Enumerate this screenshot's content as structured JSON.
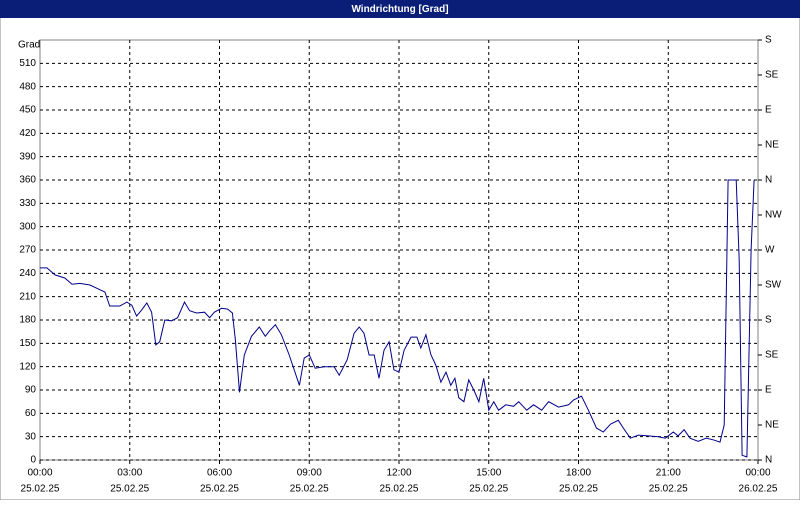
{
  "chart_data": {
    "type": "line",
    "title": "Windrichtung [Grad]",
    "ylabel": "Grad",
    "color": "#00008b",
    "x": [
      0,
      0.23,
      0.5,
      0.83,
      1.07,
      1.33,
      1.67,
      2,
      2.17,
      2.33,
      2.67,
      2.9,
      3.07,
      3.23,
      3.4,
      3.57,
      3.73,
      3.87,
      4,
      4.17,
      4.4,
      4.6,
      4.83,
      5,
      5.23,
      5.5,
      5.67,
      5.83,
      6.07,
      6.27,
      6.43,
      6.53,
      6.67,
      6.83,
      7.07,
      7.33,
      7.53,
      7.67,
      7.87,
      8.07,
      8.33,
      8.67,
      8.83,
      9,
      9.2,
      9.5,
      9.83,
      10,
      10.27,
      10.5,
      10.67,
      10.83,
      11,
      11.17,
      11.33,
      11.5,
      11.67,
      11.83,
      12,
      12.17,
      12.4,
      12.6,
      12.73,
      12.9,
      13.07,
      13.23,
      13.4,
      13.57,
      13.73,
      13.87,
      14,
      14.17,
      14.33,
      14.5,
      14.67,
      14.83,
      15,
      15.17,
      15.33,
      15.57,
      15.83,
      16,
      16.27,
      16.5,
      16.77,
      17,
      17.33,
      17.67,
      17.83,
      18.1,
      18.33,
      18.6,
      18.83,
      19.07,
      19.33,
      19.5,
      19.73,
      20,
      20.33,
      20.67,
      20.9,
      21.17,
      21.33,
      21.53,
      21.73,
      22,
      22.27,
      22.5,
      22.73,
      22.87,
      23,
      23.27,
      23.37,
      23.47,
      23.63,
      23.77,
      23.87
    ],
    "values": [
      247,
      247,
      238,
      234,
      226,
      227,
      225,
      219,
      216,
      198,
      198,
      203,
      199,
      185,
      193,
      202,
      190,
      148,
      152,
      180,
      179,
      183,
      203,
      192,
      189,
      190,
      183,
      190,
      195,
      194,
      189,
      154,
      87,
      135,
      159,
      171,
      159,
      166,
      174,
      161,
      135,
      96,
      131,
      135,
      118,
      120,
      120,
      109,
      129,
      163,
      171,
      163,
      135,
      135,
      105,
      141,
      152,
      116,
      113,
      141,
      158,
      158,
      144,
      161,
      135,
      122,
      100,
      113,
      96,
      105,
      80,
      75,
      103,
      90,
      75,
      105,
      64,
      75,
      64,
      71,
      69,
      75,
      64,
      71,
      64,
      75,
      68,
      71,
      77,
      82,
      64,
      41,
      36,
      46,
      51,
      41,
      28,
      32,
      31,
      30,
      28,
      36,
      31,
      39,
      28,
      24,
      28,
      26,
      23,
      45,
      360,
      360,
      257,
      6,
      4,
      270,
      360
    ],
    "xlim": [
      0,
      24
    ],
    "xticks": [
      {
        "value": 0,
        "label": "00:00"
      },
      {
        "value": 3,
        "label": "03:00"
      },
      {
        "value": 6,
        "label": "06:00"
      },
      {
        "value": 9,
        "label": "09:00"
      },
      {
        "value": 12,
        "label": "12:00"
      },
      {
        "value": 15,
        "label": "15:00"
      },
      {
        "value": 18,
        "label": "18:00"
      },
      {
        "value": 21,
        "label": "21:00"
      },
      {
        "value": 24,
        "label": "00:00"
      }
    ],
    "xtick_dates": [
      "25.02.25",
      "25.02.25",
      "25.02.25",
      "25.02.25",
      "25.02.25",
      "25.02.25",
      "25.02.25",
      "25.02.25",
      "26.02.25"
    ],
    "ylim": [
      0,
      540
    ],
    "yticks": [
      0,
      30,
      60,
      90,
      120,
      150,
      180,
      210,
      240,
      270,
      300,
      330,
      360,
      390,
      420,
      450,
      480,
      510
    ],
    "y2lim": [
      0,
      540
    ],
    "y2ticks": [
      {
        "value": 0,
        "label": "N"
      },
      {
        "value": 45,
        "label": "NE"
      },
      {
        "value": 90,
        "label": "E"
      },
      {
        "value": 135,
        "label": "SE"
      },
      {
        "value": 180,
        "label": "S"
      },
      {
        "value": 225,
        "label": "SW"
      },
      {
        "value": 270,
        "label": "W"
      },
      {
        "value": 315,
        "label": "NW"
      },
      {
        "value": 360,
        "label": "N"
      },
      {
        "value": 405,
        "label": "NE"
      },
      {
        "value": 450,
        "label": "E"
      },
      {
        "value": 495,
        "label": "SE"
      },
      {
        "value": 540,
        "label": "S"
      }
    ],
    "grid": true
  }
}
